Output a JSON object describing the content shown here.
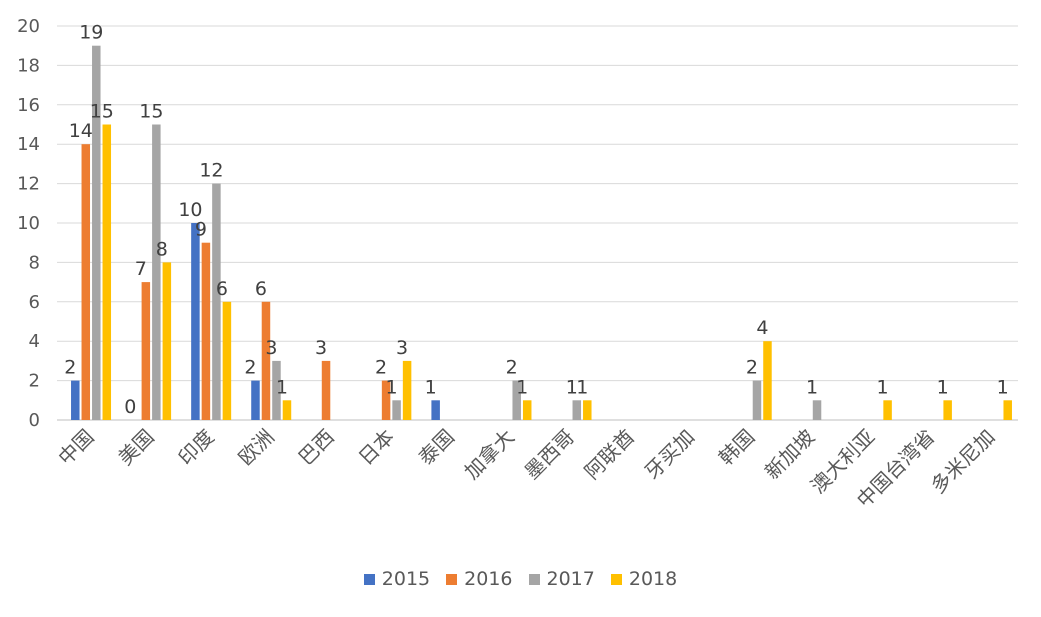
{
  "chart_data": {
    "type": "bar",
    "title": "",
    "xlabel": "",
    "ylabel": "",
    "ylim": [
      0,
      20
    ],
    "yticks": [
      0,
      2,
      4,
      6,
      8,
      10,
      12,
      14,
      16,
      18,
      20
    ],
    "grid": true,
    "legend_position": "bottom",
    "categories": [
      "中国",
      "美国",
      "印度",
      "欧洲",
      "巴西",
      "日本",
      "泰国",
      "加拿大",
      "墨西哥",
      "阿联酋",
      "牙买加",
      "韩国",
      "新加坡",
      "澳大利亚",
      "中国台湾省",
      "多米尼加"
    ],
    "series": [
      {
        "name": "2015",
        "color": "#4472C4",
        "values": [
          2,
          0,
          10,
          2,
          null,
          null,
          1,
          null,
          null,
          null,
          null,
          null,
          null,
          null,
          null,
          null
        ]
      },
      {
        "name": "2016",
        "color": "#ED7D31",
        "values": [
          14,
          7,
          9,
          6,
          3,
          2,
          null,
          null,
          null,
          null,
          null,
          null,
          null,
          null,
          null,
          null
        ]
      },
      {
        "name": "2017",
        "color": "#A5A5A5",
        "values": [
          19,
          15,
          12,
          3,
          null,
          1,
          null,
          2,
          1,
          null,
          null,
          2,
          1,
          null,
          null,
          null
        ]
      },
      {
        "name": "2018",
        "color": "#FFC000",
        "values": [
          15,
          8,
          6,
          1,
          null,
          3,
          null,
          1,
          1,
          null,
          null,
          4,
          null,
          1,
          1,
          1
        ]
      }
    ]
  }
}
